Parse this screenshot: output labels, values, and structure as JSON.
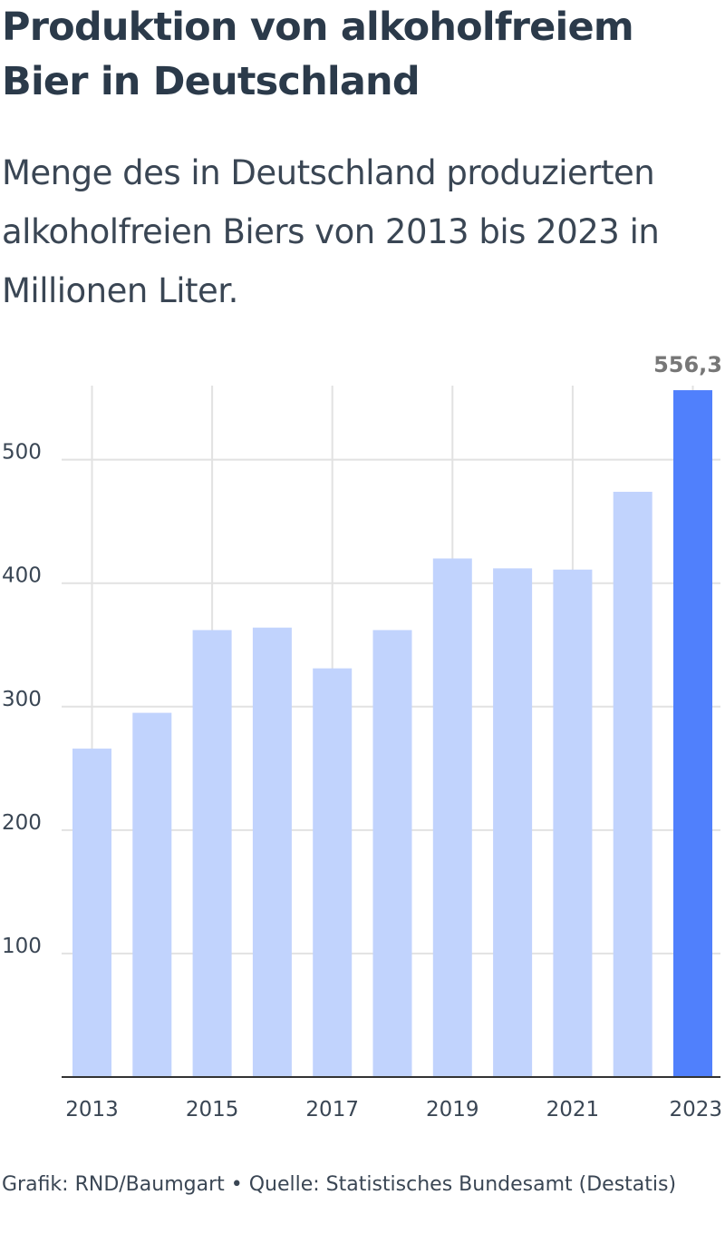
{
  "title": "Produktion von alkoholfreiem Bier in Deutschland",
  "subtitle": "Menge des in Deutschland produzierten alkoholfreien Biers von 2013 bis 2023 in Millionen Liter.",
  "footer": "Grafik: RND/Baumgart • Quelle: Statistisches Bundesamt (Destatis)",
  "colors": {
    "bar": "#c1d3fd",
    "highlight": "#5080fc",
    "grid": "#e2e2e2",
    "axis": "#333333",
    "label": "#777777"
  },
  "chart_data": {
    "type": "bar",
    "categories": [
      "2013",
      "2014",
      "2015",
      "2016",
      "2017",
      "2018",
      "2019",
      "2020",
      "2021",
      "2022",
      "2023"
    ],
    "values": [
      266,
      295,
      362,
      364,
      331,
      362,
      420,
      412,
      411,
      474,
      556.3
    ],
    "highlight_index": 10,
    "data_labels": [
      {
        "index": 10,
        "text": "556,3"
      }
    ],
    "x_tick_labels": [
      "2013",
      "",
      "2015",
      "",
      "2017",
      "",
      "2019",
      "",
      "2021",
      "",
      "2023"
    ],
    "y_ticks": [
      100,
      200,
      300,
      400,
      500
    ],
    "ylim": [
      0,
      560
    ],
    "grid": true,
    "xlabel": "",
    "ylabel": ""
  }
}
